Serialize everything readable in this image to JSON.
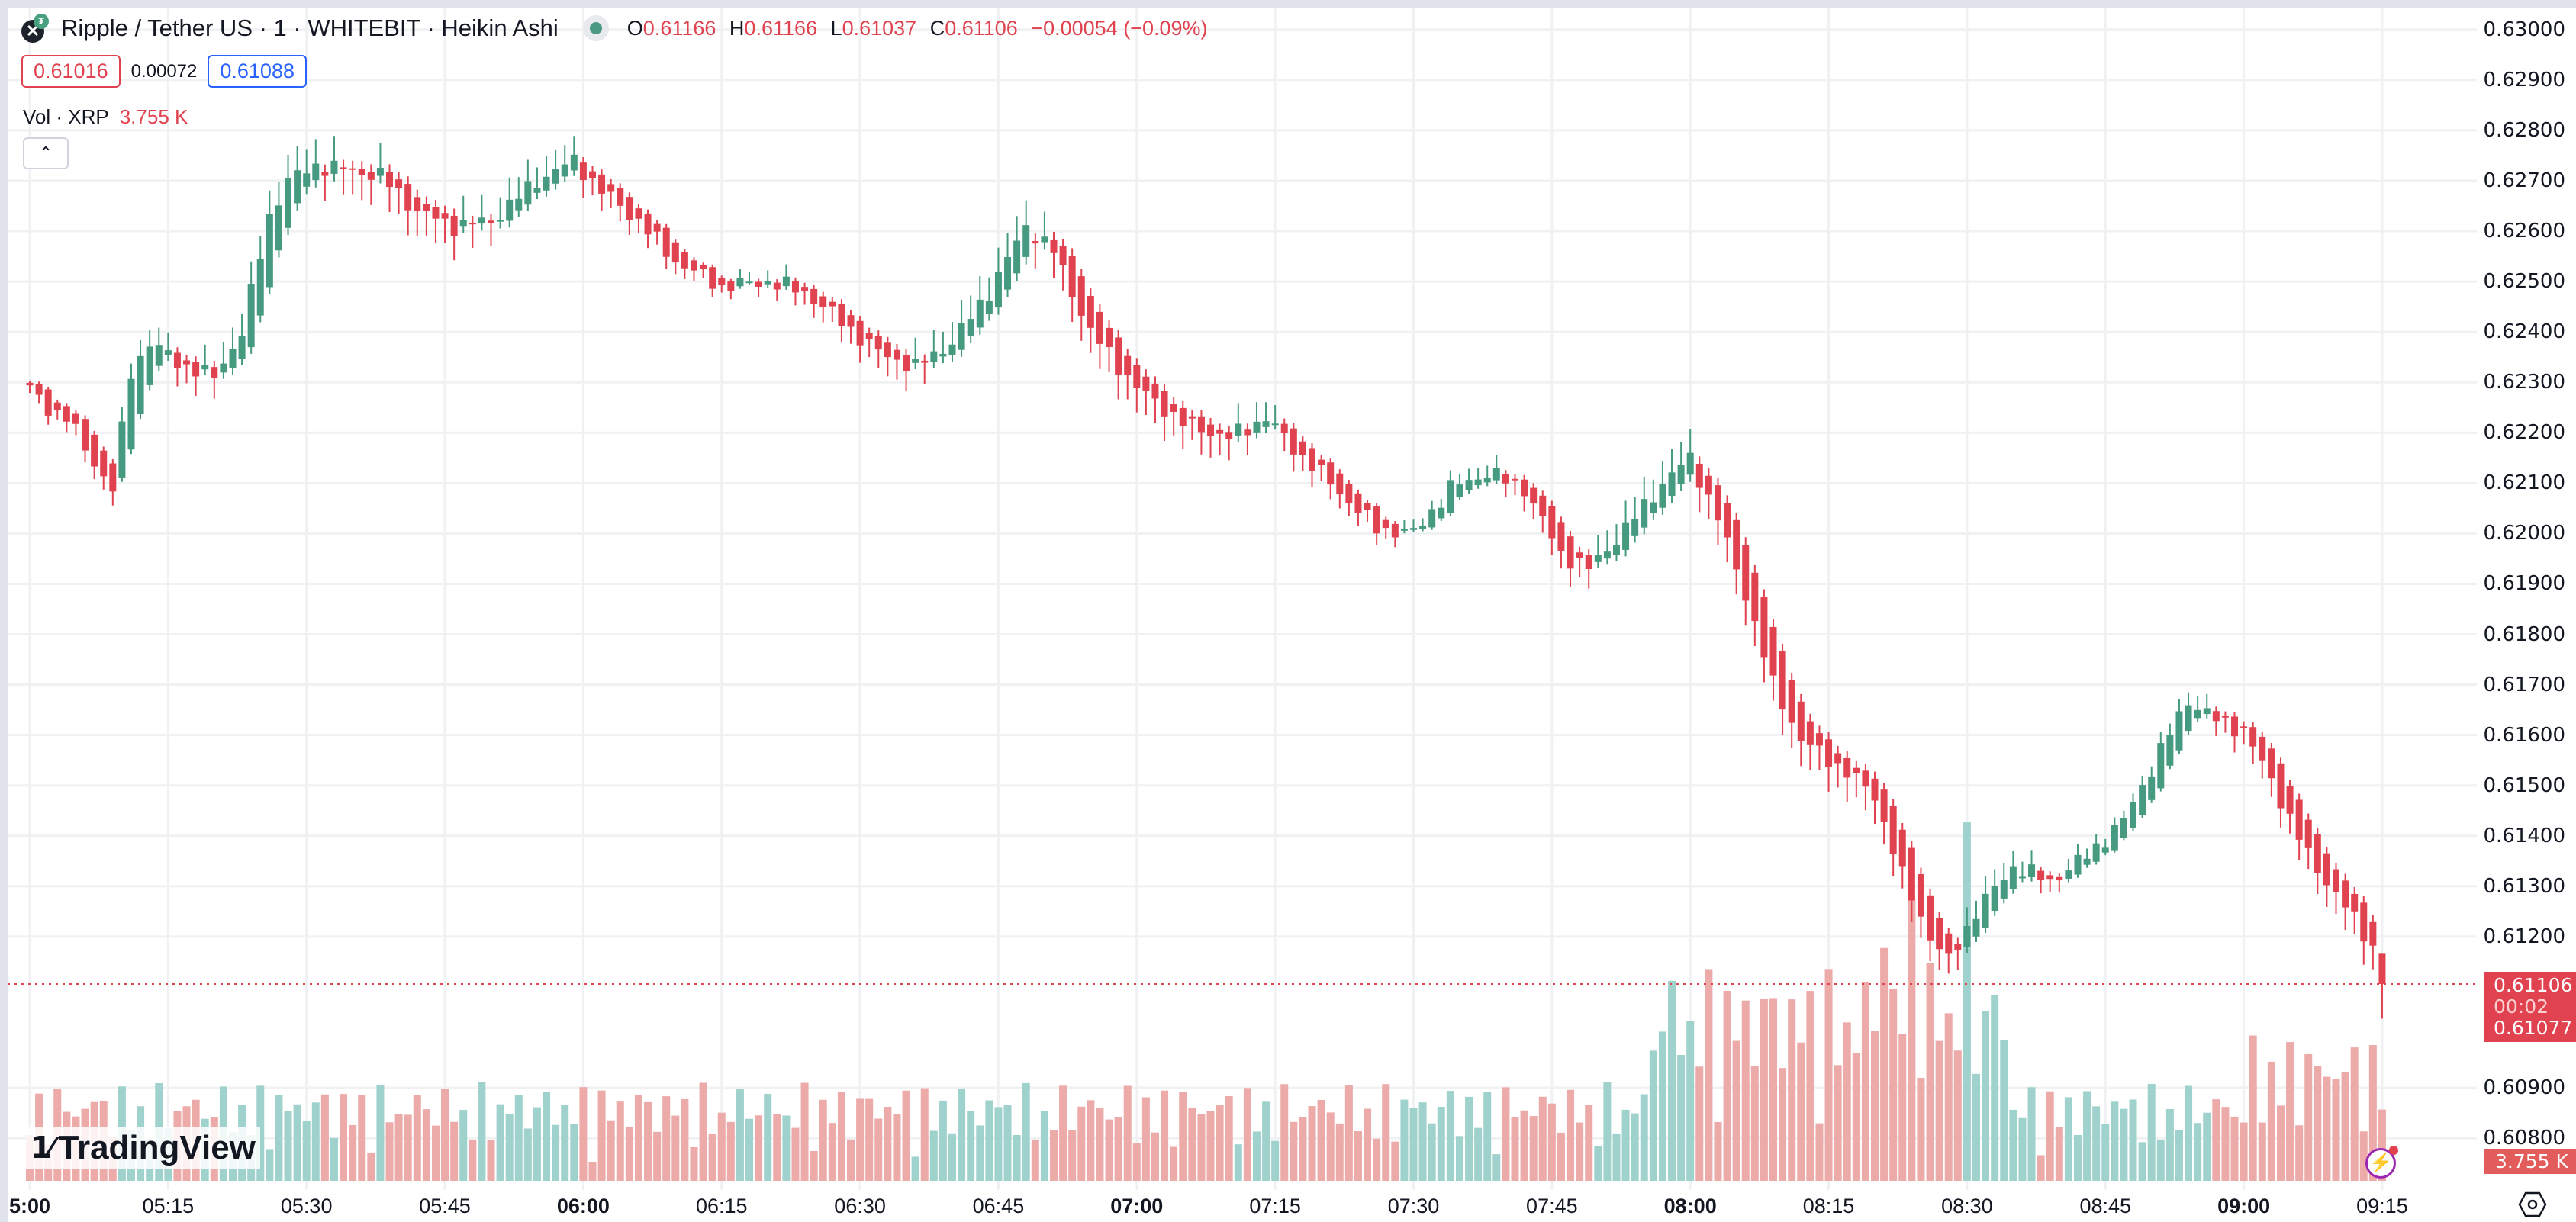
{
  "header": {
    "symbol_title": "Ripple / Tether US · 1 · WHITEBIT · Heikin Ashi",
    "base_icon": "xrp-icon",
    "quote_icon": "usdt-icon",
    "market_status": "open",
    "ohlc": {
      "o_label": "O",
      "o": "0.61166",
      "h_label": "H",
      "h": "0.61166",
      "l_label": "L",
      "l": "0.61037",
      "c_label": "C",
      "c": "0.61106",
      "change": "−0.00054 (−0.09%)"
    },
    "sell_price": "0.61016",
    "spread": "0.00072",
    "buy_price": "0.61088",
    "volume_legend": {
      "label": "Vol · XRP",
      "value": "3.755 K"
    },
    "collapse_icon": "chevron-up-icon"
  },
  "price_axis": {
    "labels": [
      "0.63000",
      "0.62900",
      "0.62800",
      "0.62700",
      "0.62600",
      "0.62500",
      "0.62400",
      "0.62300",
      "0.62200",
      "0.62100",
      "0.62000",
      "0.61900",
      "0.61800",
      "0.61700",
      "0.61600",
      "0.61500",
      "0.61400",
      "0.61300",
      "0.61200",
      "0.60900",
      "0.60800"
    ],
    "last_price": "0.61106",
    "countdown": "00:02",
    "last_price_2": "0.61077",
    "volume_badge": "3.755 K"
  },
  "time_axis": {
    "labels": [
      {
        "t": "5:00",
        "major": true
      },
      {
        "t": "05:15",
        "major": false
      },
      {
        "t": "05:30",
        "major": false
      },
      {
        "t": "05:45",
        "major": false
      },
      {
        "t": "06:00",
        "major": true
      },
      {
        "t": "06:15",
        "major": false
      },
      {
        "t": "06:30",
        "major": false
      },
      {
        "t": "06:45",
        "major": false
      },
      {
        "t": "07:00",
        "major": true
      },
      {
        "t": "07:15",
        "major": false
      },
      {
        "t": "07:30",
        "major": false
      },
      {
        "t": "07:45",
        "major": false
      },
      {
        "t": "08:00",
        "major": true
      },
      {
        "t": "08:15",
        "major": false
      },
      {
        "t": "08:30",
        "major": false
      },
      {
        "t": "08:45",
        "major": false
      },
      {
        "t": "09:00",
        "major": true
      },
      {
        "t": "09:15",
        "major": false
      }
    ]
  },
  "branding": {
    "logo_text": "TradingView"
  },
  "colors": {
    "up": "#459a80",
    "down": "#e0434f",
    "vol_up": "#a0d2cd",
    "vol_down": "#ecaaa9",
    "grid": "#f0f1f3",
    "last_line": "#e0434f"
  },
  "chart_data": {
    "type": "candlestick",
    "title": "Ripple / Tether US · 1 · WHITEBIT · Heikin Ashi",
    "interval": "1 minute",
    "x_start": "05:00",
    "x_end": "09:15",
    "ylim": [
      0.6075,
      0.6305
    ],
    "grid": true,
    "legend_position": "top-left",
    "last": {
      "open": 0.61166,
      "high": 0.61166,
      "low": 0.61037,
      "close": 0.61106,
      "change": -0.00054,
      "change_pct": -0.09
    },
    "close_waypoints": [
      [
        0,
        0.62286
      ],
      [
        2,
        0.6225
      ],
      [
        4,
        0.6223
      ],
      [
        7,
        0.6214
      ],
      [
        9,
        0.62087
      ],
      [
        11,
        0.6232
      ],
      [
        13,
        0.6238
      ],
      [
        16,
        0.6234
      ],
      [
        20,
        0.6231
      ],
      [
        23,
        0.624
      ],
      [
        26,
        0.6263
      ],
      [
        28,
        0.627
      ],
      [
        31,
        0.6273
      ],
      [
        35,
        0.6272
      ],
      [
        38,
        0.6271
      ],
      [
        42,
        0.6264
      ],
      [
        46,
        0.6261
      ],
      [
        50,
        0.6262
      ],
      [
        55,
        0.627
      ],
      [
        59,
        0.6274
      ],
      [
        62,
        0.6268
      ],
      [
        66,
        0.6262
      ],
      [
        70,
        0.6254
      ],
      [
        75,
        0.6249
      ],
      [
        80,
        0.625
      ],
      [
        84,
        0.6248
      ],
      [
        88,
        0.6242
      ],
      [
        92,
        0.6236
      ],
      [
        96,
        0.6233
      ],
      [
        100,
        0.6238
      ],
      [
        104,
        0.6248
      ],
      [
        108,
        0.6261
      ],
      [
        111,
        0.6256
      ],
      [
        115,
        0.624
      ],
      [
        120,
        0.6229
      ],
      [
        125,
        0.6222
      ],
      [
        130,
        0.6219
      ],
      [
        134,
        0.6223
      ],
      [
        137,
        0.6217
      ],
      [
        141,
        0.621
      ],
      [
        146,
        0.6201
      ],
      [
        150,
        0.62
      ],
      [
        154,
        0.6209
      ],
      [
        158,
        0.6212
      ],
      [
        162,
        0.6209
      ],
      [
        166,
        0.6196
      ],
      [
        169,
        0.6193
      ],
      [
        173,
        0.6201
      ],
      [
        177,
        0.621
      ],
      [
        180,
        0.6215
      ],
      [
        183,
        0.6203
      ],
      [
        186,
        0.6188
      ],
      [
        189,
        0.617
      ],
      [
        192,
        0.6159
      ],
      [
        196,
        0.6154
      ],
      [
        200,
        0.6148
      ],
      [
        203,
        0.6132
      ],
      [
        206,
        0.612
      ],
      [
        208,
        0.6115
      ],
      [
        211,
        0.6125
      ],
      [
        215,
        0.6134
      ],
      [
        219,
        0.6131
      ],
      [
        223,
        0.6136
      ],
      [
        227,
        0.6143
      ],
      [
        231,
        0.6157
      ],
      [
        234,
        0.6167
      ],
      [
        237,
        0.6163
      ],
      [
        240,
        0.6161
      ],
      [
        243,
        0.6151
      ],
      [
        247,
        0.6136
      ],
      [
        251,
        0.6126
      ],
      [
        254,
        0.6118
      ],
      [
        255,
        0.61106
      ]
    ],
    "volume_scale_hint": "volume pane, bars up to ~0.6x chart height around 08:00-08:25"
  }
}
